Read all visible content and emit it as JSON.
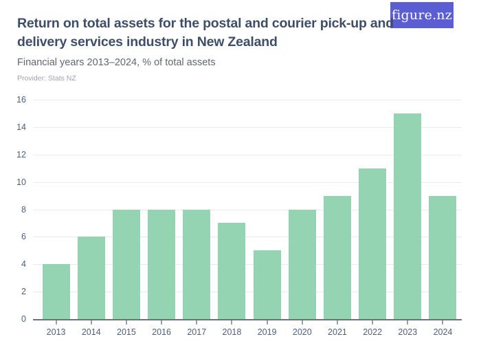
{
  "header": {
    "title_line1": "Return on total assets for the postal and courier pick-up and",
    "title_line2": "delivery services industry in New Zealand",
    "subtitle": "Financial years 2013–2024, % of total assets",
    "provider": "Provider: Stats NZ"
  },
  "logo": {
    "text": "figure.nz"
  },
  "colors": {
    "bar": "#94d4b2",
    "logo_bg": "#5a5ed2",
    "logo_text": "#ffffff",
    "title": "#3e4e68",
    "axis_label": "#4d5e7e",
    "gridline": "#e9e9e9",
    "axis_line": "#6b7278"
  },
  "chart_data": {
    "type": "bar",
    "title": "Return on total assets for the postal and courier pick-up and delivery services industry in New Zealand",
    "subtitle": "Financial years 2013–2024, % of total assets",
    "categories": [
      "2013",
      "2014",
      "2015",
      "2016",
      "2017",
      "2018",
      "2019",
      "2020",
      "2021",
      "2022",
      "2023",
      "2024"
    ],
    "values": [
      4,
      6,
      8,
      8,
      8,
      7,
      5,
      8,
      9,
      11,
      15,
      9
    ],
    "xlabel": "",
    "ylabel": "",
    "unit": "% of total assets",
    "ylim": [
      0,
      16
    ],
    "ytick_step": 2,
    "grid": "horizontal",
    "legend": "none"
  }
}
